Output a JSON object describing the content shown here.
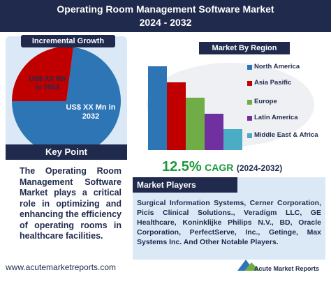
{
  "header": {
    "title": "Operating Room Management Software Market",
    "subtitle": "2024 - 2032"
  },
  "growth": {
    "title": "Incremental Growth",
    "label_2024": "US$ XX Mn in 2024",
    "label_2032": "US$ XX Mn in 2032"
  },
  "key_point": {
    "title": "Key Point",
    "text": "The Operating Room Management Software Market plays a critical role in optimizing and enhancing the efficiency of operating rooms in healthcare facilities."
  },
  "region": {
    "title": "Market By Region",
    "items": [
      "North America",
      "Asia Pasific",
      "Europe",
      "Latin America",
      "Middle East & Africa"
    ]
  },
  "cagr": {
    "value": "12.5%",
    "label": "CAGR",
    "period": "(2024-2032)"
  },
  "players": {
    "title": "Market Players",
    "text": "Surgical Information Systems, Cerner Corporation, Picis Clinical Solutions., Veradigm LLC, GE Healthcare, Koninklijke Philips N.V., BD, Oracle Corporation, PerfectServe, Inc., Getinge, Max Systems Inc. And Other Notable Players."
  },
  "footer": {
    "url": "www.acutemarketreports.com",
    "logo": "Acute Market Reports"
  }
}
